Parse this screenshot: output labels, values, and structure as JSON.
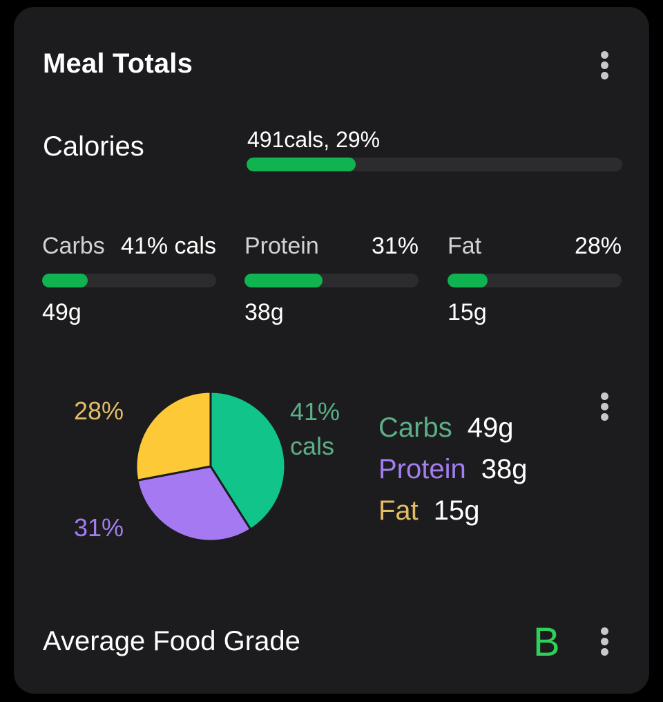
{
  "card": {
    "title": "Meal Totals"
  },
  "calories": {
    "label": "Calories",
    "value_text": "491cals, 29%",
    "progress": 0.29
  },
  "macros": [
    {
      "name": "Carbs",
      "pct_text": "41% cals",
      "grams": "49g",
      "progress": 0.26
    },
    {
      "name": "Protein",
      "pct_text": "31%",
      "grams": "38g",
      "progress": 0.45
    },
    {
      "name": "Fat",
      "pct_text": "28%",
      "grams": "15g",
      "progress": 0.23
    }
  ],
  "chart_data": {
    "type": "pie",
    "slices": [
      {
        "label": "Carbs",
        "value": 41,
        "color": "#10c48a"
      },
      {
        "label": "Protein",
        "value": 31,
        "color": "#a479f2"
      },
      {
        "label": "Fat",
        "value": 28,
        "color": "#fec937"
      }
    ],
    "labels": {
      "carbs_line1": "41%",
      "carbs_line2": "cals",
      "protein": "31%",
      "fat": "28%"
    }
  },
  "legend": [
    {
      "name": "Carbs",
      "grams": "49g",
      "color": "#5cae88"
    },
    {
      "name": "Protein",
      "grams": "38g",
      "color": "#a47ef0"
    },
    {
      "name": "Fat",
      "grams": "15g",
      "color": "#e3bd66"
    }
  ],
  "grade": {
    "label": "Average Food Grade",
    "value": "B",
    "color": "#2ed158"
  },
  "colors": {
    "card_bg": "#1c1c1e",
    "track": "#2c2c2e",
    "progress_fill": "#0fb350",
    "pie_label_carbs": "#5cae88",
    "pie_label_protein": "#a47ef0",
    "pie_label_fat": "#e3bd66"
  },
  "icons": {
    "menu": "more-vertical-icon"
  }
}
